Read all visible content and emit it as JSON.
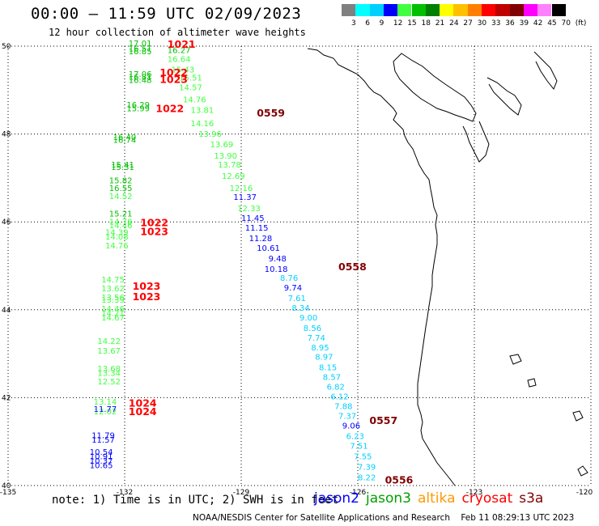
{
  "header": {
    "title": "00:00 – 11:59 UTC 02/09/2023",
    "subtitle": "12 hour collection of altimeter wave heights"
  },
  "legend": {
    "labels": [
      "3",
      "6",
      "9",
      "12",
      "15",
      "18",
      "21",
      "24",
      "27",
      "30",
      "33",
      "36",
      "39",
      "42",
      "45",
      "70",
      "(ft)"
    ],
    "colors": [
      "#808080",
      "#00ffff",
      "#00d0ff",
      "#0000ff",
      "#40ff40",
      "#00c000",
      "#008000",
      "#ffff00",
      "#ffc000",
      "#ff8000",
      "#ff0000",
      "#c00000",
      "#800000",
      "#ff00ff",
      "#ff80ff",
      "#000000"
    ]
  },
  "axes": {
    "lon_ticks": [
      "-135",
      "-132",
      "-129",
      "-126",
      "-123",
      "-120"
    ],
    "lat_ticks": [
      "50",
      "48",
      "46",
      "44",
      "42",
      "40"
    ]
  },
  "track_labels": [
    {
      "text": "0559",
      "lon": -128.6,
      "lat": 48.4,
      "color": "#800000"
    },
    {
      "text": "0558",
      "lon": -126.5,
      "lat": 44.9,
      "color": "#800000"
    },
    {
      "text": "0557",
      "lon": -125.7,
      "lat": 41.4,
      "color": "#800000"
    },
    {
      "text": "0556",
      "lon": -125.3,
      "lat": 40.05,
      "color": "#800000"
    },
    {
      "text": "1021",
      "lon": -130.9,
      "lat": 49.96,
      "color": "#ff0000"
    },
    {
      "text": "1022",
      "lon": -131.1,
      "lat": 49.32,
      "color": "#ff0000"
    },
    {
      "text": "1023",
      "lon": -131.1,
      "lat": 49.16,
      "color": "#ff0000"
    },
    {
      "text": "1022",
      "lon": -131.2,
      "lat": 48.5,
      "color": "#ff0000"
    },
    {
      "text": "1022",
      "lon": -131.6,
      "lat": 45.9,
      "color": "#ff0000"
    },
    {
      "text": "1023",
      "lon": -131.6,
      "lat": 45.7,
      "color": "#ff0000"
    },
    {
      "text": "1023",
      "lon": -131.8,
      "lat": 44.46,
      "color": "#ff0000"
    },
    {
      "text": "1023",
      "lon": -131.8,
      "lat": 44.22,
      "color": "#ff0000"
    },
    {
      "text": "1024",
      "lon": -131.9,
      "lat": 41.8,
      "color": "#ff0000"
    },
    {
      "text": "1024",
      "lon": -131.9,
      "lat": 41.6,
      "color": "#ff0000"
    }
  ],
  "swh": [
    {
      "v": "17.01",
      "lon": -131.9,
      "lat": 50.0,
      "c": "#00c000"
    },
    {
      "v": "16.51",
      "lon": -131.9,
      "lat": 49.88,
      "c": "#00c000"
    },
    {
      "v": "16.85",
      "lon": -131.9,
      "lat": 49.82,
      "c": "#00c000"
    },
    {
      "v": "16.27",
      "lon": -130.9,
      "lat": 49.84,
      "c": "#00c000"
    },
    {
      "v": "16.64",
      "lon": -130.9,
      "lat": 49.64,
      "c": "#40ff40"
    },
    {
      "v": "15.43",
      "lon": -130.8,
      "lat": 49.4,
      "c": "#40ff40"
    },
    {
      "v": "17.06",
      "lon": -131.9,
      "lat": 49.3,
      "c": "#00c000"
    },
    {
      "v": "16.81",
      "lon": -131.9,
      "lat": 49.24,
      "c": "#00c000"
    },
    {
      "v": "16.48",
      "lon": -131.9,
      "lat": 49.16,
      "c": "#00c000"
    },
    {
      "v": "15.51",
      "lon": -130.6,
      "lat": 49.22,
      "c": "#40ff40"
    },
    {
      "v": "14.57",
      "lon": -130.6,
      "lat": 49.0,
      "c": "#40ff40"
    },
    {
      "v": "14.76",
      "lon": -130.5,
      "lat": 48.72,
      "c": "#40ff40"
    },
    {
      "v": "16.29",
      "lon": -131.95,
      "lat": 48.6,
      "c": "#00c000"
    },
    {
      "v": "15.99",
      "lon": -131.95,
      "lat": 48.52,
      "c": "#00c000"
    },
    {
      "v": "13.81",
      "lon": -130.3,
      "lat": 48.48,
      "c": "#40ff40"
    },
    {
      "v": "14.16",
      "lon": -130.3,
      "lat": 48.18,
      "c": "#40ff40"
    },
    {
      "v": "13.96",
      "lon": -130.1,
      "lat": 47.94,
      "c": "#40ff40"
    },
    {
      "v": "16.40",
      "lon": -132.3,
      "lat": 47.86,
      "c": "#00c000"
    },
    {
      "v": "16.74",
      "lon": -132.3,
      "lat": 47.8,
      "c": "#00c000"
    },
    {
      "v": "13.69",
      "lon": -129.8,
      "lat": 47.7,
      "c": "#40ff40"
    },
    {
      "v": "13.90",
      "lon": -129.7,
      "lat": 47.44,
      "c": "#40ff40"
    },
    {
      "v": "15.41",
      "lon": -132.35,
      "lat": 47.24,
      "c": "#00c000"
    },
    {
      "v": "15.31",
      "lon": -132.35,
      "lat": 47.18,
      "c": "#00c000"
    },
    {
      "v": "13.78",
      "lon": -129.6,
      "lat": 47.24,
      "c": "#40ff40"
    },
    {
      "v": "12.69",
      "lon": -129.5,
      "lat": 46.98,
      "c": "#40ff40"
    },
    {
      "v": "15.82",
      "lon": -132.4,
      "lat": 46.88,
      "c": "#00c000"
    },
    {
      "v": "12.16",
      "lon": -129.3,
      "lat": 46.7,
      "c": "#40ff40"
    },
    {
      "v": "16.55",
      "lon": -132.4,
      "lat": 46.7,
      "c": "#00c000"
    },
    {
      "v": "14.52",
      "lon": -132.4,
      "lat": 46.52,
      "c": "#40ff40"
    },
    {
      "v": "11.37",
      "lon": -129.2,
      "lat": 46.5,
      "c": "#0000ff"
    },
    {
      "v": "12.33",
      "lon": -129.1,
      "lat": 46.24,
      "c": "#40ff40"
    },
    {
      "v": "15.21",
      "lon": -132.4,
      "lat": 46.12,
      "c": "#00c000"
    },
    {
      "v": "11.45",
      "lon": -129.0,
      "lat": 46.02,
      "c": "#0000ff"
    },
    {
      "v": "14.78",
      "lon": -132.4,
      "lat": 45.94,
      "c": "#40ff40"
    },
    {
      "v": "14.46",
      "lon": -132.4,
      "lat": 45.86,
      "c": "#40ff40"
    },
    {
      "v": "11.15",
      "lon": -128.9,
      "lat": 45.8,
      "c": "#0000ff"
    },
    {
      "v": "14.39",
      "lon": -132.5,
      "lat": 45.7,
      "c": "#40ff40"
    },
    {
      "v": "14.08",
      "lon": -132.5,
      "lat": 45.6,
      "c": "#40ff40"
    },
    {
      "v": "11.28",
      "lon": -128.8,
      "lat": 45.56,
      "c": "#0000ff"
    },
    {
      "v": "14.76",
      "lon": -132.5,
      "lat": 45.4,
      "c": "#40ff40"
    },
    {
      "v": "10.61",
      "lon": -128.6,
      "lat": 45.34,
      "c": "#0000ff"
    },
    {
      "v": "9.48",
      "lon": -128.3,
      "lat": 45.1,
      "c": "#0000ff"
    },
    {
      "v": "10.18",
      "lon": -128.4,
      "lat": 44.86,
      "c": "#0000ff"
    },
    {
      "v": "8.76",
      "lon": -128.0,
      "lat": 44.66,
      "c": "#00d0ff"
    },
    {
      "v": "14.75",
      "lon": -132.6,
      "lat": 44.62,
      "c": "#40ff40"
    },
    {
      "v": "9.74",
      "lon": -127.9,
      "lat": 44.44,
      "c": "#0000ff"
    },
    {
      "v": "13.62",
      "lon": -132.6,
      "lat": 44.42,
      "c": "#40ff40"
    },
    {
      "v": "7.61",
      "lon": -127.8,
      "lat": 44.2,
      "c": "#00d0ff"
    },
    {
      "v": "13.56",
      "lon": -132.6,
      "lat": 44.22,
      "c": "#40ff40"
    },
    {
      "v": "13.39",
      "lon": -132.6,
      "lat": 44.16,
      "c": "#40ff40"
    },
    {
      "v": "8.34",
      "lon": -127.7,
      "lat": 43.98,
      "c": "#00d0ff"
    },
    {
      "v": "14.46",
      "lon": -132.6,
      "lat": 43.96,
      "c": "#40ff40"
    },
    {
      "v": "14.21",
      "lon": -132.6,
      "lat": 43.86,
      "c": "#40ff40"
    },
    {
      "v": "14.67",
      "lon": -132.6,
      "lat": 43.76,
      "c": "#40ff40"
    },
    {
      "v": "9.00",
      "lon": -127.5,
      "lat": 43.76,
      "c": "#00d0ff"
    },
    {
      "v": "8.56",
      "lon": -127.4,
      "lat": 43.52,
      "c": "#00d0ff"
    },
    {
      "v": "7.74",
      "lon": -127.3,
      "lat": 43.3,
      "c": "#00d0ff"
    },
    {
      "v": "14.22",
      "lon": -132.7,
      "lat": 43.22,
      "c": "#40ff40"
    },
    {
      "v": "8.95",
      "lon": -127.2,
      "lat": 43.08,
      "c": "#00d0ff"
    },
    {
      "v": "13.67",
      "lon": -132.7,
      "lat": 43.0,
      "c": "#40ff40"
    },
    {
      "v": "8.97",
      "lon": -127.1,
      "lat": 42.86,
      "c": "#00d0ff"
    },
    {
      "v": "8.15",
      "lon": -127.0,
      "lat": 42.62,
      "c": "#00d0ff"
    },
    {
      "v": "13.68",
      "lon": -132.7,
      "lat": 42.6,
      "c": "#40ff40"
    },
    {
      "v": "13.34",
      "lon": -132.7,
      "lat": 42.5,
      "c": "#40ff40"
    },
    {
      "v": "8.57",
      "lon": -126.9,
      "lat": 42.4,
      "c": "#00d0ff"
    },
    {
      "v": "12.52",
      "lon": -132.7,
      "lat": 42.3,
      "c": "#40ff40"
    },
    {
      "v": "6.82",
      "lon": -126.8,
      "lat": 42.18,
      "c": "#00d0ff"
    },
    {
      "v": "6.12",
      "lon": -126.7,
      "lat": 41.96,
      "c": "#00d0ff"
    },
    {
      "v": "13.14",
      "lon": -132.8,
      "lat": 41.84,
      "c": "#40ff40"
    },
    {
      "v": "7.88",
      "lon": -126.6,
      "lat": 41.74,
      "c": "#00d0ff"
    },
    {
      "v": "12.02",
      "lon": -132.8,
      "lat": 41.62,
      "c": "#40ff40"
    },
    {
      "v": "11.77",
      "lon": -132.8,
      "lat": 41.68,
      "c": "#0000ff"
    },
    {
      "v": "7.37",
      "lon": -126.5,
      "lat": 41.52,
      "c": "#00d0ff"
    },
    {
      "v": "9.06",
      "lon": -126.4,
      "lat": 41.3,
      "c": "#0000ff"
    },
    {
      "v": "11.79",
      "lon": -132.85,
      "lat": 41.08,
      "c": "#0000ff"
    },
    {
      "v": "11.57",
      "lon": -132.85,
      "lat": 40.98,
      "c": "#0000ff"
    },
    {
      "v": "6.23",
      "lon": -126.3,
      "lat": 41.06,
      "c": "#00d0ff"
    },
    {
      "v": "7.51",
      "lon": -126.2,
      "lat": 40.84,
      "c": "#00d0ff"
    },
    {
      "v": "10.54",
      "lon": -132.9,
      "lat": 40.7,
      "c": "#0000ff"
    },
    {
      "v": "10.91",
      "lon": -132.9,
      "lat": 40.6,
      "c": "#0000ff"
    },
    {
      "v": "10.37",
      "lon": -132.9,
      "lat": 40.5,
      "c": "#0000ff"
    },
    {
      "v": "7.55",
      "lon": -126.1,
      "lat": 40.6,
      "c": "#00d0ff"
    },
    {
      "v": "10.65",
      "lon": -132.9,
      "lat": 40.4,
      "c": "#0000ff"
    },
    {
      "v": "7.39",
      "lon": -126.0,
      "lat": 40.36,
      "c": "#00d0ff"
    },
    {
      "v": "8.22",
      "lon": -126.0,
      "lat": 40.12,
      "c": "#00d0ff"
    }
  ],
  "footer": {
    "note": "note: 1) Time is in UTC; 2) SWH is in feet",
    "satellites": [
      {
        "name": "jason2",
        "color": "#0000ff"
      },
      {
        "name": "jason3",
        "color": "#00a000"
      },
      {
        "name": "altika",
        "color": "#ff9900"
      },
      {
        "name": "cryosat",
        "color": "#ff0000"
      },
      {
        "name": "s3a",
        "color": "#800000"
      }
    ],
    "credit": "NOAA/NESDIS Center for Satellite Applications and Research    Feb 11 08:29:13 UTC 2023"
  }
}
